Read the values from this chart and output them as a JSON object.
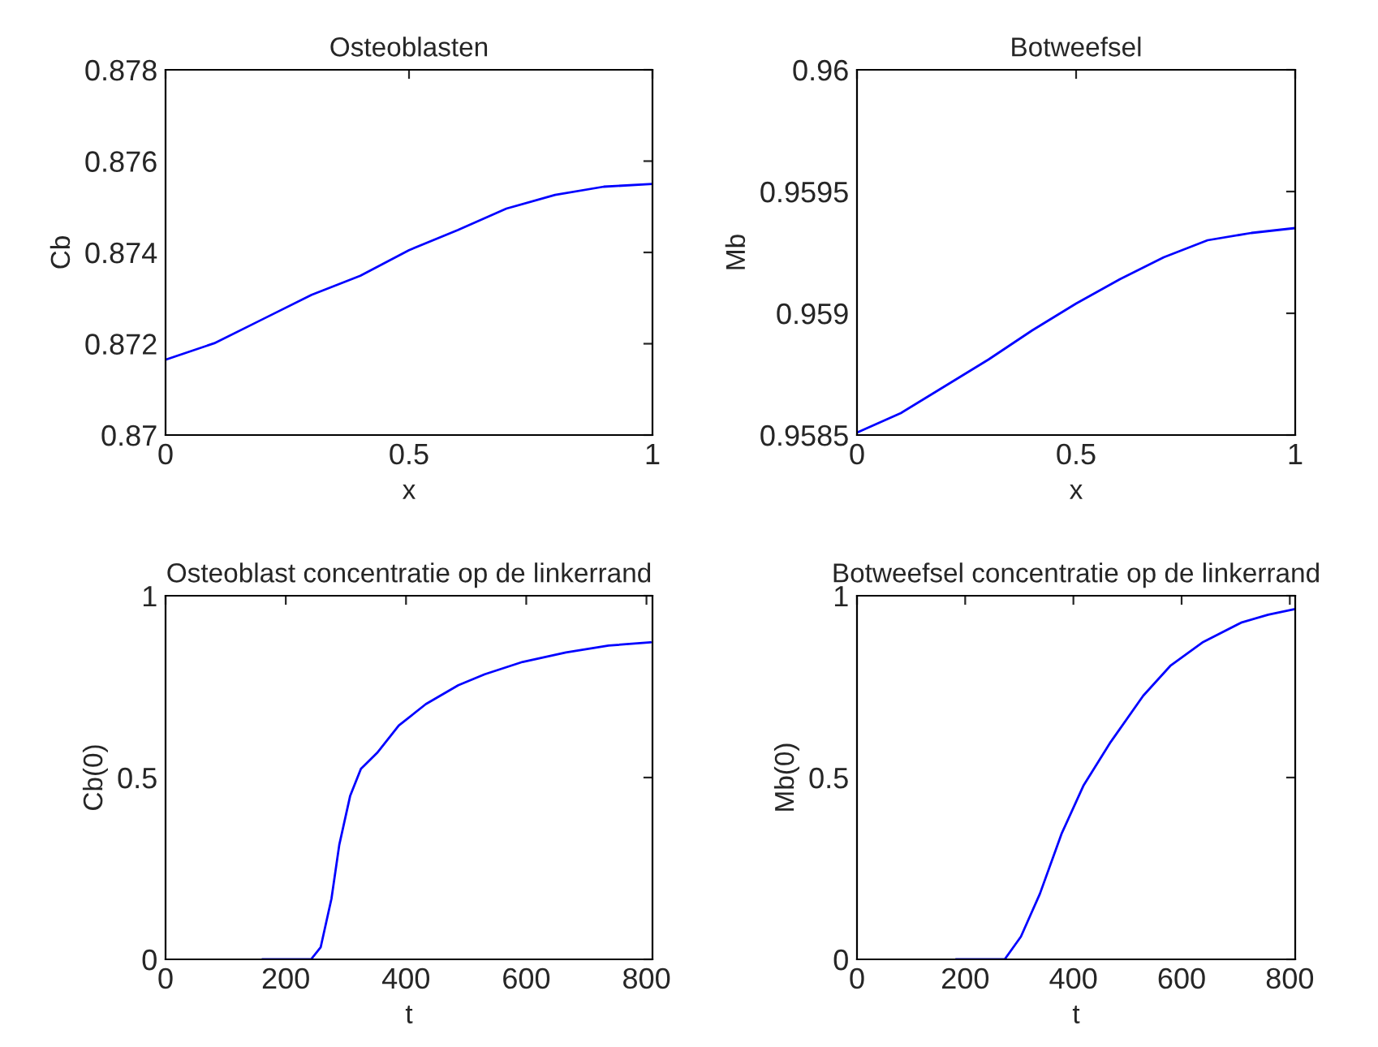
{
  "chart_data": [
    {
      "type": "line",
      "title": "Osteoblasten",
      "xlabel": "x",
      "ylabel": "Cb",
      "xlim": [
        0,
        1
      ],
      "xticks": [
        0,
        0.5,
        1
      ],
      "ylim": [
        0.87,
        0.878
      ],
      "yticks": [
        0.87,
        0.872,
        0.874,
        0.876,
        0.878
      ],
      "grid": false,
      "legend": false,
      "series": [
        {
          "color": "#0000ff",
          "x": [
            0,
            0.1,
            0.2,
            0.3,
            0.4,
            0.5,
            0.6,
            0.7,
            0.8,
            0.9,
            1.0
          ],
          "values": [
            0.87165,
            0.87201,
            0.87254,
            0.87307,
            0.87349,
            0.87405,
            0.87449,
            0.87496,
            0.87526,
            0.87544,
            0.8755
          ]
        }
      ]
    },
    {
      "type": "line",
      "title": "Botweefsel",
      "xlabel": "x",
      "ylabel": "Mb",
      "xlim": [
        0,
        1
      ],
      "xticks": [
        0,
        0.5,
        1
      ],
      "ylim": [
        0.9585,
        0.96
      ],
      "yticks": [
        0.9585,
        0.959,
        0.9595,
        0.96
      ],
      "grid": false,
      "legend": false,
      "series": [
        {
          "color": "#0000ff",
          "x": [
            0,
            0.1,
            0.2,
            0.3,
            0.4,
            0.5,
            0.6,
            0.7,
            0.8,
            0.9,
            1.0
          ],
          "values": [
            0.95851,
            0.95859,
            0.9587,
            0.95881,
            0.95893,
            0.95904,
            0.95914,
            0.95923,
            0.9593,
            0.95933,
            0.95935
          ]
        }
      ]
    },
    {
      "type": "line",
      "title": "Osteoblast concentratie op de linkerrand",
      "xlabel": "t",
      "ylabel": "Cb(0)",
      "xlim": [
        0,
        810
      ],
      "xticks": [
        0,
        200,
        400,
        600,
        800
      ],
      "ylim": [
        0,
        1
      ],
      "yticks": [
        0,
        0.5,
        1
      ],
      "grid": false,
      "legend": false,
      "series": [
        {
          "color": "#0000ff",
          "x": [
            161,
            242,
            258,
            276,
            289,
            307,
            325,
            352,
            388,
            433,
            487,
            531,
            594,
            666,
            737,
            807
          ],
          "values": [
            0,
            0,
            0.033,
            0.167,
            0.315,
            0.449,
            0.524,
            0.568,
            0.643,
            0.702,
            0.754,
            0.784,
            0.818,
            0.844,
            0.863,
            0.872
          ]
        }
      ]
    },
    {
      "type": "line",
      "title": "Botweefsel concentratie op de linkerrand",
      "xlabel": "t",
      "ylabel": "Mb(0)",
      "xlim": [
        0,
        810
      ],
      "xticks": [
        0,
        200,
        400,
        600,
        800
      ],
      "ylim": [
        0,
        1
      ],
      "yticks": [
        0,
        0.5,
        1
      ],
      "grid": false,
      "legend": false,
      "series": [
        {
          "color": "#0000ff",
          "x": [
            183,
            273,
            303,
            338,
            378,
            419,
            469,
            529,
            579,
            640,
            710,
            760,
            808
          ],
          "values": [
            0,
            0,
            0.0625,
            0.18,
            0.345,
            0.479,
            0.598,
            0.725,
            0.807,
            0.873,
            0.926,
            0.948,
            0.963
          ]
        }
      ]
    }
  ]
}
